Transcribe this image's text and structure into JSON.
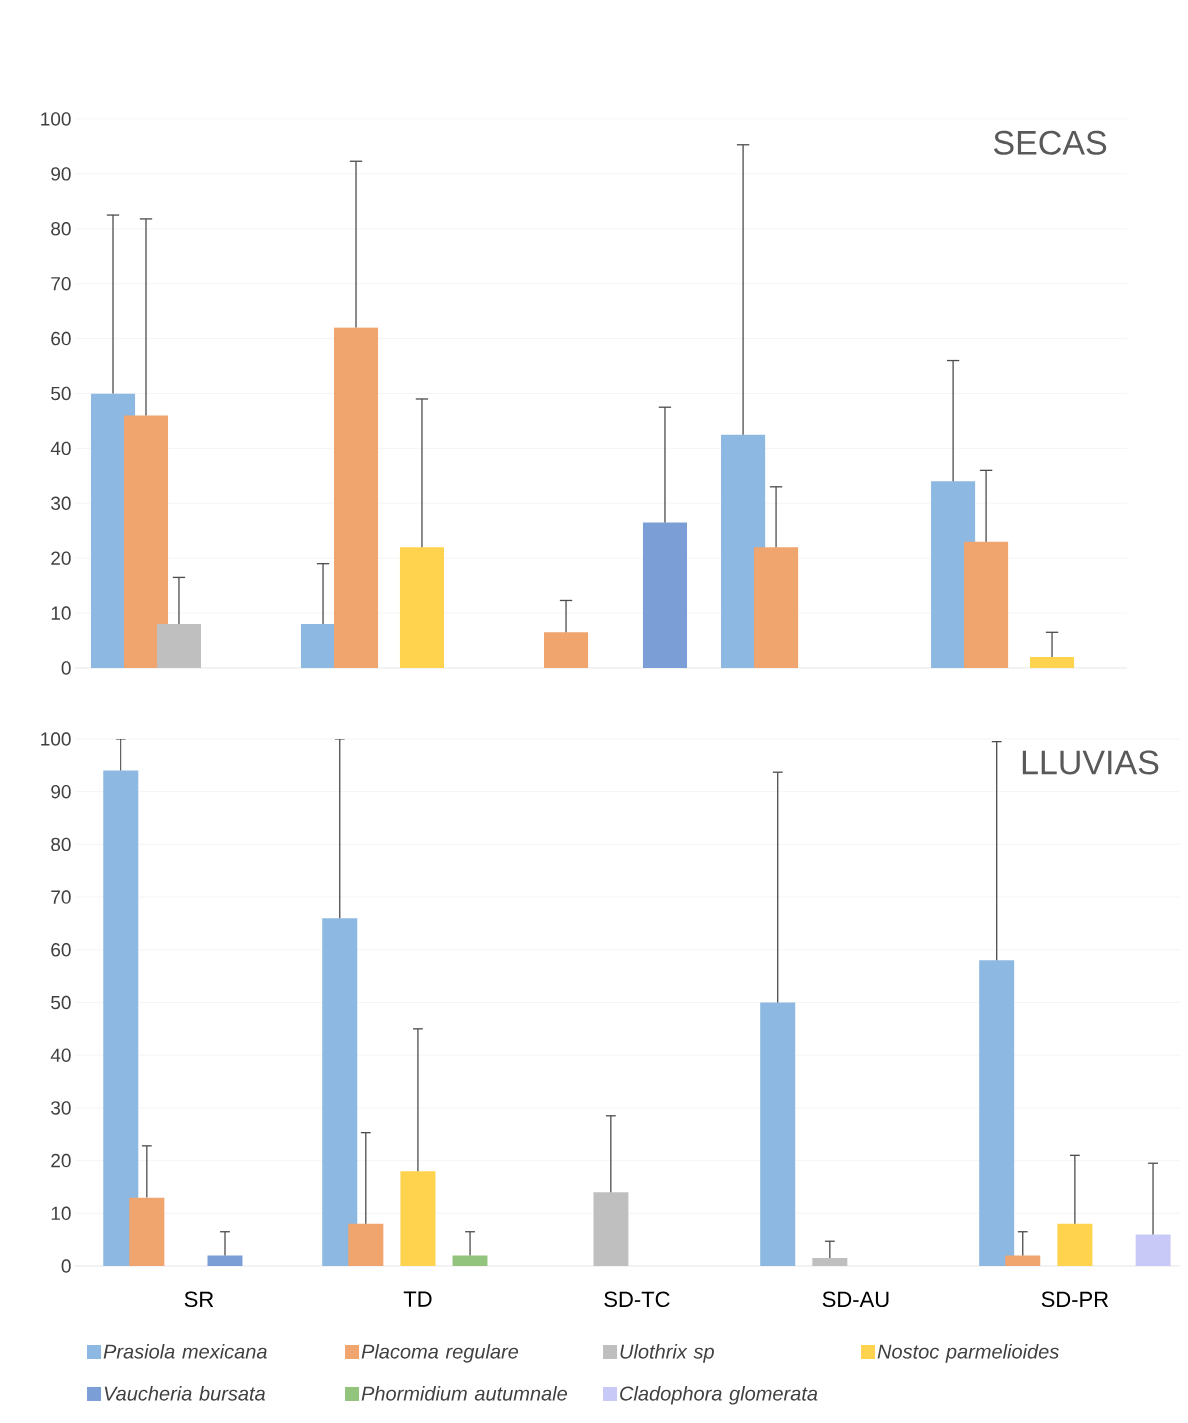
{
  "chart_data": [
    {
      "type": "bar",
      "title": "SECAS",
      "categories": [
        null,
        null,
        null,
        null,
        null
      ],
      "tick_labels": "y",
      "grid": "y",
      "ylim": [
        0,
        100
      ],
      "yticks": [
        0,
        10,
        20,
        30,
        40,
        50,
        60,
        70,
        80,
        90,
        100
      ],
      "series": [
        {
          "color": "#8cb8e2",
          "values": [
            50,
            8,
            null,
            42.5,
            34
          ],
          "errors": [
            [
              50,
              82.5
            ],
            [
              8,
              19
            ],
            null,
            [
              42.5,
              95.3
            ],
            [
              34,
              56
            ]
          ]
        },
        {
          "color": "#f0a46e",
          "values": [
            46,
            62,
            6.5,
            22,
            23
          ],
          "errors": [
            [
              46,
              81.8
            ],
            [
              62,
              92.3
            ],
            [
              6.5,
              12.3
            ],
            [
              22,
              33
            ],
            [
              23,
              36
            ]
          ]
        },
        {
          "color": "#bfbfbf",
          "values": [
            8,
            null,
            null,
            null,
            null
          ],
          "errors": [
            [
              8,
              16.5
            ],
            null,
            null,
            null,
            null
          ]
        },
        {
          "color": "#ffd34d",
          "values": [
            null,
            22,
            null,
            null,
            2
          ],
          "errors": [
            null,
            [
              22,
              49
            ],
            null,
            null,
            [
              2,
              6.5
            ]
          ]
        },
        {
          "color": "#7b9ed6",
          "values": [
            null,
            null,
            26.5,
            null,
            null
          ],
          "errors": [
            null,
            null,
            [
              26.5,
              47.5
            ],
            null,
            null
          ]
        }
      ]
    },
    {
      "type": "bar",
      "title": "LLUVIAS",
      "categories": [
        "SR",
        "TD",
        "SD-TC",
        "SD-AU",
        "SD-PR"
      ],
      "grid": "y",
      "legend": "bottom",
      "ylim": [
        0,
        100
      ],
      "yticks": [
        0,
        10,
        20,
        30,
        40,
        50,
        60,
        70,
        80,
        90,
        100
      ],
      "series": [
        {
          "name": "Prasiola mexicana",
          "color": "#8cb8e2",
          "values": [
            94,
            66,
            null,
            50,
            58
          ],
          "errors": [
            [
              94,
              100
            ],
            [
              66,
              100
            ],
            null,
            [
              50,
              93.7
            ],
            [
              58,
              99.5
            ]
          ]
        },
        {
          "name": "Placoma regulare",
          "color": "#f0a46e",
          "values": [
            13,
            8,
            null,
            null,
            2
          ],
          "errors": [
            [
              13,
              22.8
            ],
            [
              8,
              25.3
            ],
            null,
            null,
            [
              2,
              6.5
            ]
          ]
        },
        {
          "name": "Ulothrix  sp",
          "color": "#bfbfbf",
          "values": [
            null,
            null,
            14,
            1.5,
            null
          ],
          "errors": [
            null,
            null,
            [
              14,
              28.5
            ],
            [
              1.5,
              4.7
            ],
            null
          ]
        },
        {
          "name": "Nostoc parmelioides",
          "color": "#ffd34d",
          "values": [
            null,
            18,
            null,
            null,
            8
          ],
          "errors": [
            null,
            [
              18,
              45
            ],
            null,
            null,
            [
              8,
              21
            ]
          ]
        },
        {
          "name": "Vaucheria bursata",
          "color": "#7b9ed6",
          "values": [
            2,
            null,
            null,
            null,
            null
          ],
          "errors": [
            [
              2,
              6.5
            ],
            null,
            null,
            null,
            null
          ]
        },
        {
          "name": "Phormidium autumnale",
          "color": "#93c47d",
          "values": [
            null,
            2,
            null,
            null,
            null
          ],
          "errors": [
            null,
            [
              2,
              6.5
            ],
            null,
            null,
            null
          ]
        },
        {
          "name": "Cladophora glomerata",
          "color": "#c9c9f7",
          "values": [
            null,
            null,
            null,
            null,
            6
          ],
          "errors": [
            null,
            null,
            null,
            null,
            [
              6,
              19.5
            ]
          ]
        }
      ]
    }
  ]
}
